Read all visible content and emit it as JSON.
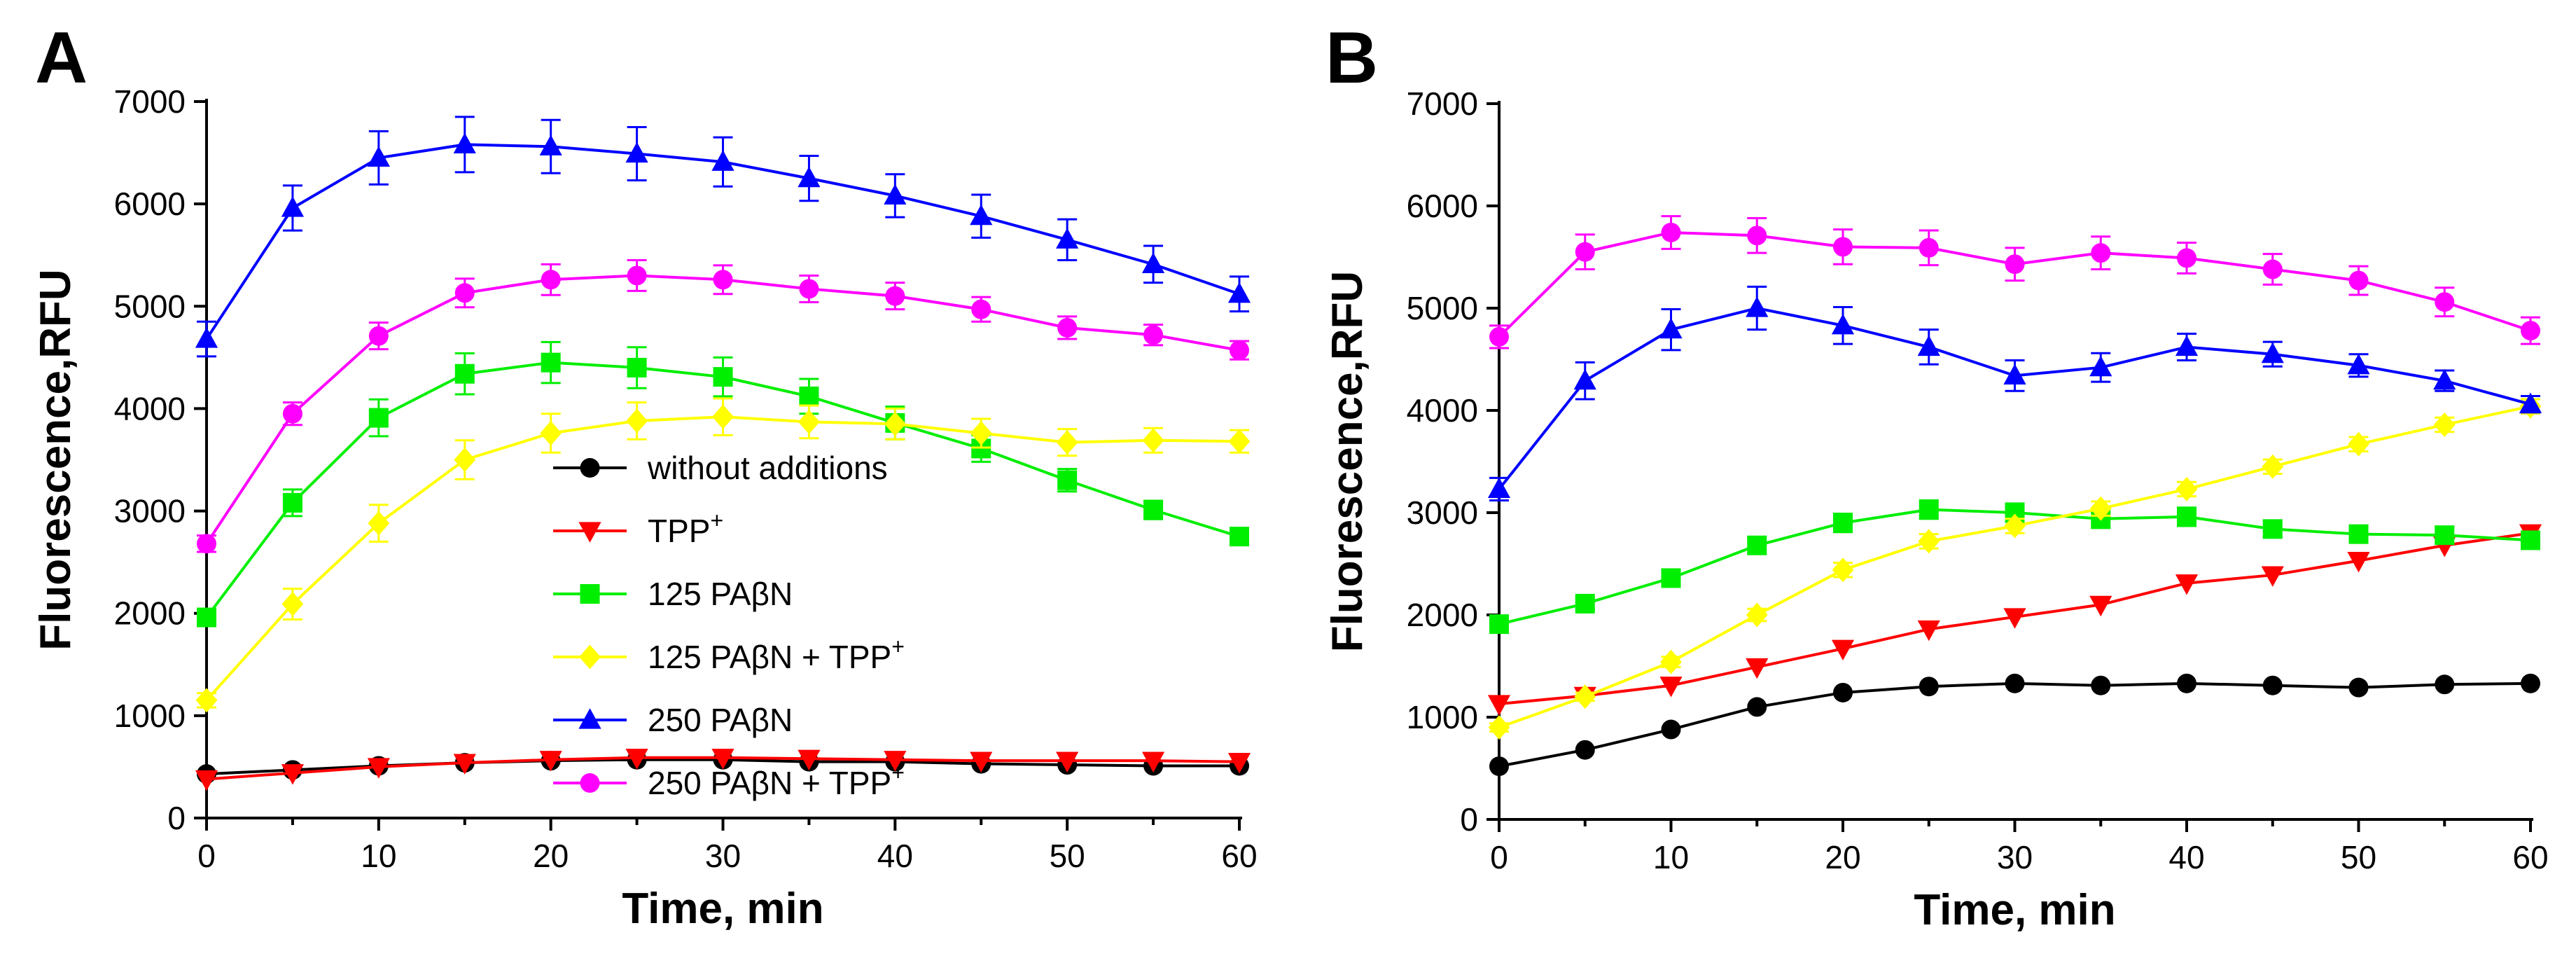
{
  "chart_data": [
    {
      "type": "line",
      "panel_label": "A",
      "xlabel": "Time, min",
      "ylabel": "Fluorescence,RFU",
      "xlim": [
        0,
        60
      ],
      "ylim": [
        0,
        7000
      ],
      "x_ticks": [
        "0",
        "10",
        "20",
        "30",
        "40",
        "50",
        "60"
      ],
      "y_ticks": [
        "0",
        "1000",
        "2000",
        "3000",
        "4000",
        "5000",
        "6000",
        "7000"
      ],
      "x": [
        0,
        5,
        10,
        15,
        20,
        25,
        30,
        35,
        40,
        45,
        50,
        55,
        60
      ],
      "legend": {
        "placement": "center",
        "entries": [
          {
            "text": "without additions",
            "sup": ""
          },
          {
            "text": "TPP",
            "sup": "+"
          },
          {
            "text": "125 PAβN",
            "sup": ""
          },
          {
            "text": "125  PAβN + TPP",
            "sup": "+"
          },
          {
            "text": "250 PAβN",
            "sup": ""
          },
          {
            "text": "250 PAβN + TPP",
            "sup": "+"
          }
        ]
      },
      "series": [
        {
          "name": "without additions",
          "color": "#000000",
          "marker": "circle",
          "values": [
            430,
            470,
            510,
            540,
            560,
            570,
            570,
            550,
            550,
            530,
            520,
            510,
            510
          ],
          "errors": []
        },
        {
          "name": "TPP+",
          "color": "#ff0000",
          "marker": "triangle-down",
          "values": [
            380,
            440,
            500,
            540,
            570,
            590,
            590,
            580,
            570,
            560,
            560,
            560,
            550
          ],
          "errors": []
        },
        {
          "name": "125 PAβN",
          "color": "#00ee00",
          "marker": "square",
          "values": [
            1960,
            3080,
            3910,
            4340,
            4450,
            4400,
            4310,
            4120,
            3860,
            3610,
            3300,
            3010,
            2750
          ],
          "errors": [
            60,
            130,
            180,
            200,
            200,
            200,
            190,
            170,
            160,
            130,
            110,
            90,
            80
          ]
        },
        {
          "name": "125 PAβN + TPP+",
          "color": "#ffff00",
          "marker": "diamond",
          "values": [
            1150,
            2090,
            2880,
            3500,
            3760,
            3880,
            3920,
            3870,
            3850,
            3760,
            3670,
            3690,
            3680
          ],
          "errors": [
            70,
            150,
            180,
            190,
            190,
            180,
            180,
            160,
            150,
            140,
            130,
            120,
            110
          ]
        },
        {
          "name": "250 PAβN",
          "color": "#0000ff",
          "marker": "triangle-up",
          "values": [
            4680,
            5960,
            6450,
            6580,
            6560,
            6490,
            6410,
            6250,
            6080,
            5880,
            5650,
            5410,
            5120
          ],
          "errors": [
            170,
            220,
            260,
            270,
            260,
            260,
            240,
            220,
            210,
            210,
            200,
            180,
            170
          ]
        },
        {
          "name": "250 PAβN + TPP+",
          "color": "#ff00ff",
          "marker": "circle",
          "values": [
            2680,
            3950,
            4710,
            5130,
            5260,
            5300,
            5260,
            5170,
            5100,
            4970,
            4790,
            4720,
            4570
          ],
          "errors": [
            80,
            110,
            130,
            140,
            150,
            150,
            140,
            130,
            130,
            120,
            110,
            100,
            90
          ]
        }
      ]
    },
    {
      "type": "line",
      "panel_label": "B",
      "xlabel": "Time, min",
      "ylabel": "Fluorescence,RFU",
      "xlim": [
        0,
        60
      ],
      "ylim": [
        0,
        7000
      ],
      "x_ticks": [
        "0",
        "10",
        "20",
        "30",
        "40",
        "50",
        "60"
      ],
      "y_ticks": [
        "0",
        "1000",
        "2000",
        "3000",
        "4000",
        "5000",
        "6000",
        "7000"
      ],
      "x": [
        0,
        5,
        10,
        15,
        20,
        25,
        30,
        35,
        40,
        45,
        50,
        55,
        60
      ],
      "series": [
        {
          "name": "without additions",
          "color": "#000000",
          "marker": "circle",
          "values": [
            520,
            680,
            880,
            1100,
            1240,
            1300,
            1330,
            1310,
            1330,
            1310,
            1290,
            1320,
            1330
          ],
          "errors": []
        },
        {
          "name": "TPP+",
          "color": "#ff0000",
          "marker": "triangle-down",
          "values": [
            1130,
            1210,
            1310,
            1490,
            1670,
            1860,
            1980,
            2100,
            2310,
            2390,
            2530,
            2680,
            2800
          ],
          "errors": []
        },
        {
          "name": "125 PAβN",
          "color": "#00ee00",
          "marker": "square",
          "values": [
            1910,
            2110,
            2360,
            2680,
            2900,
            3030,
            3000,
            2940,
            2960,
            2840,
            2790,
            2780,
            2730
          ],
          "errors": [
            40,
            50,
            60,
            80,
            90,
            90,
            90,
            90,
            90,
            80,
            80,
            80,
            80
          ]
        },
        {
          "name": "125 PAβN + TPP+",
          "color": "#ffff00",
          "marker": "diamond",
          "values": [
            900,
            1200,
            1540,
            2000,
            2440,
            2720,
            2870,
            3040,
            3230,
            3450,
            3670,
            3860,
            4040
          ],
          "errors": [
            40,
            40,
            50,
            60,
            70,
            70,
            70,
            70,
            70,
            70,
            70,
            70,
            70
          ]
        },
        {
          "name": "250 PAβN",
          "color": "#0000ff",
          "marker": "triangle-up",
          "values": [
            3230,
            4290,
            4790,
            5000,
            4830,
            4620,
            4340,
            4420,
            4620,
            4550,
            4440,
            4290,
            4060
          ],
          "errors": [
            110,
            180,
            200,
            210,
            180,
            170,
            150,
            140,
            130,
            120,
            110,
            100,
            80
          ]
        },
        {
          "name": "250 PAβN + TPP+",
          "color": "#ff00ff",
          "marker": "circle",
          "values": [
            4720,
            5550,
            5740,
            5710,
            5600,
            5590,
            5430,
            5540,
            5490,
            5380,
            5270,
            5060,
            4780
          ],
          "errors": [
            110,
            170,
            160,
            170,
            170,
            170,
            160,
            160,
            150,
            150,
            140,
            140,
            130
          ]
        }
      ]
    }
  ]
}
